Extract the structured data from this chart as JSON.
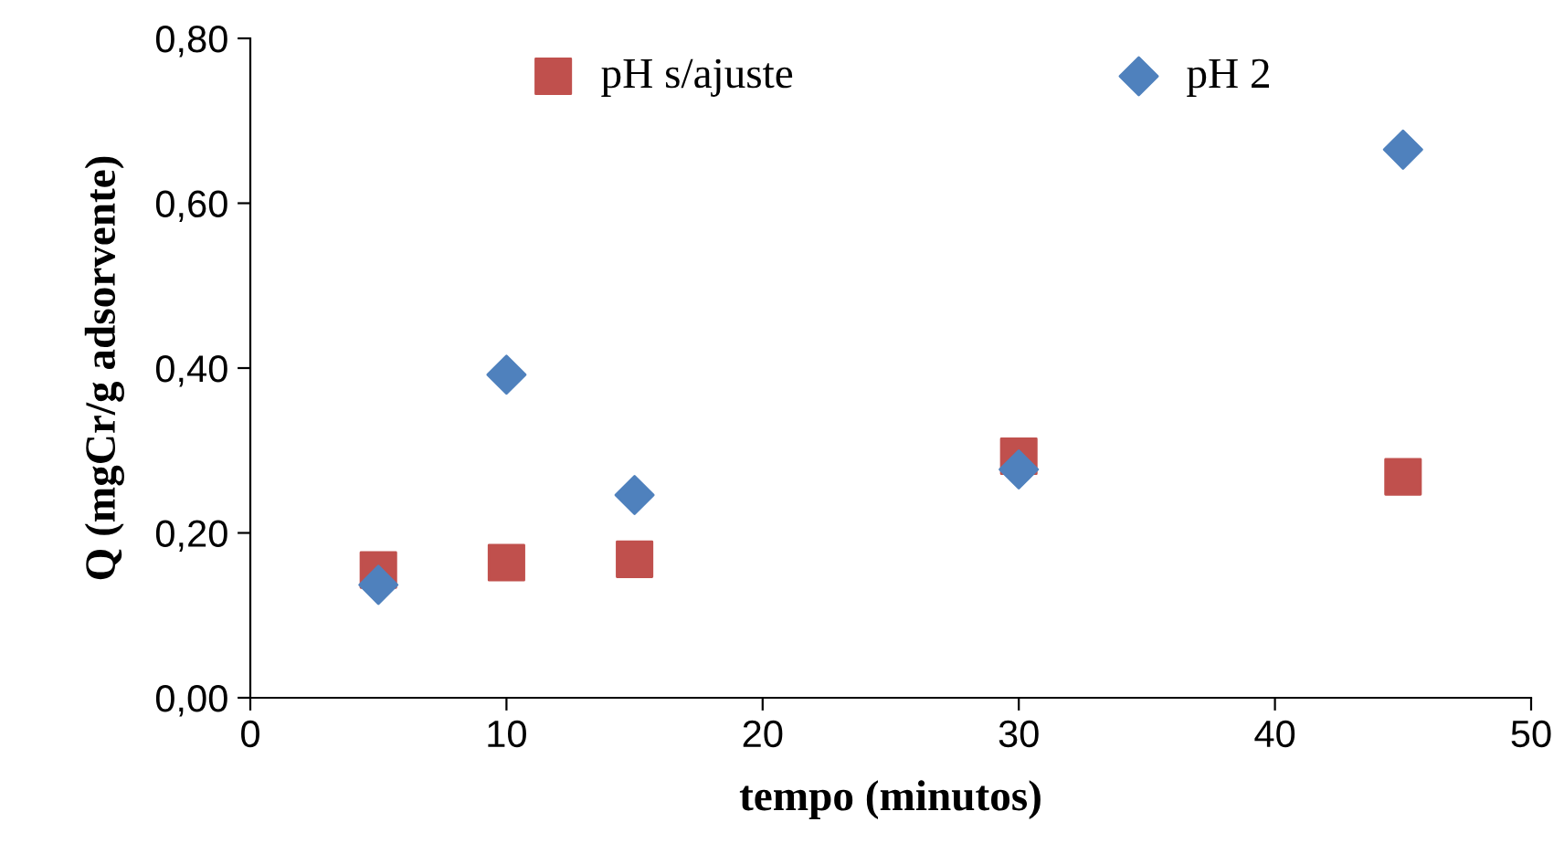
{
  "chart_data": {
    "type": "scatter",
    "xlabel": "tempo (minutos)",
    "ylabel": "Q (mgCr/g adsorvente)",
    "series": [
      {
        "name": "pH s/ajuste",
        "color": "#c0504d",
        "marker": "square",
        "x": [
          5,
          10,
          15,
          30,
          45
        ],
        "values": [
          0.155,
          0.164,
          0.168,
          0.293,
          0.268
        ]
      },
      {
        "name": "pH 2",
        "color": "#4f81bd",
        "marker": "diamond",
        "x": [
          5,
          10,
          15,
          30,
          45
        ],
        "values": [
          0.137,
          0.392,
          0.246,
          0.277,
          0.665
        ]
      }
    ],
    "xlim": [
      0,
      50
    ],
    "xticks": [
      0,
      10,
      20,
      30,
      40,
      50
    ],
    "ylim": [
      0,
      0.8
    ],
    "yticks": [
      {
        "value": 0,
        "label": "0,00"
      },
      {
        "value": 0.2,
        "label": "0,20"
      },
      {
        "value": 0.4,
        "label": "0,40"
      },
      {
        "value": 0.6,
        "label": "0,60"
      },
      {
        "value": 0.8,
        "label": "0,80"
      }
    ],
    "legend": "top",
    "grid": false
  }
}
